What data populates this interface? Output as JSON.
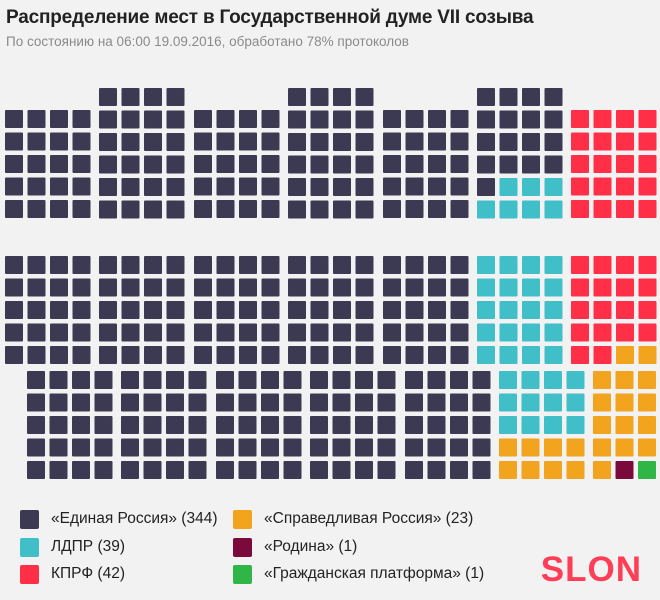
{
  "title": "Распределение мест в Государственной думе VII созыва",
  "subtitle": "По состоянию на 06:00 19.09.2016, обработано 78% протоколов",
  "logo": "SLON",
  "chart_data": {
    "type": "waffle",
    "total_seats": 450,
    "series": [
      {
        "name": "«Единая Россия» (344)",
        "seats": 344,
        "color": "#3c3a53"
      },
      {
        "name": "ЛДПР (39)",
        "seats": 39,
        "color": "#41bfc9"
      },
      {
        "name": "КПРФ (42)",
        "seats": 42,
        "color": "#ff2f48"
      },
      {
        "name": "«Справедливая Россия» (23)",
        "seats": 23,
        "color": "#f2a41f"
      },
      {
        "name": "«Родина» (1)",
        "seats": 1,
        "color": "#7a0a3c"
      },
      {
        "name": "«Гражданская платформа» (1)",
        "seats": 1,
        "color": "#2fb646"
      }
    ]
  }
}
